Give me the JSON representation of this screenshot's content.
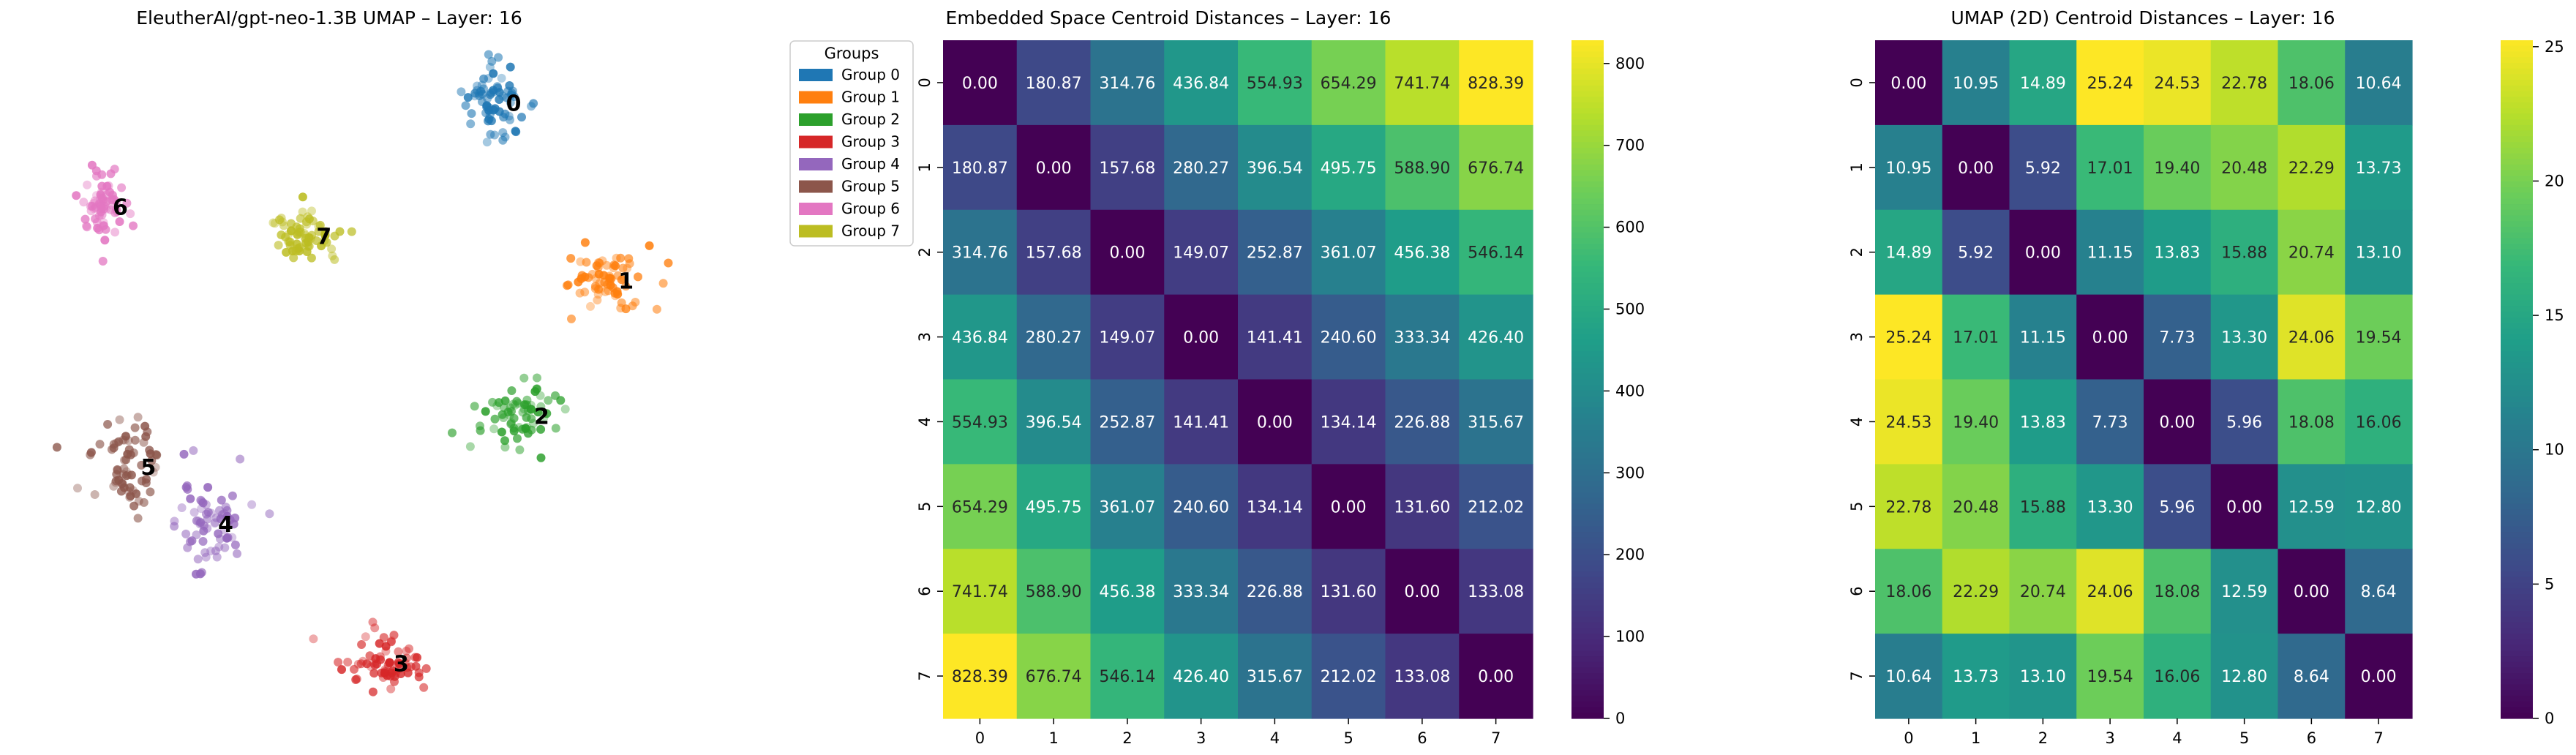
{
  "chart_data": [
    {
      "type": "scatter",
      "title": "EleutherAI/gpt-neo-1.3B UMAP – Layer: 16",
      "legend": {
        "title": "Groups",
        "placement": "right-outside-top",
        "entries": [
          "Group 0",
          "Group 1",
          "Group 2",
          "Group 3",
          "Group 4",
          "Group 5",
          "Group 6",
          "Group 7"
        ]
      },
      "axes_visible": false,
      "clusters": [
        {
          "label": "0",
          "color": "#1f77b4",
          "center": [
            13.2,
            8.9
          ]
        },
        {
          "label": "1",
          "color": "#ff7f0e",
          "center": [
            16.4,
            0.5
          ]
        },
        {
          "label": "2",
          "color": "#2ca02c",
          "center": [
            14.0,
            -5.9
          ]
        },
        {
          "label": "3",
          "color": "#d62728",
          "center": [
            10.0,
            -17.6
          ]
        },
        {
          "label": "4",
          "color": "#9467bd",
          "center": [
            5.0,
            -11.0
          ]
        },
        {
          "label": "5",
          "color": "#8c564b",
          "center": [
            2.8,
            -8.3
          ]
        },
        {
          "label": "6",
          "color": "#e377c2",
          "center": [
            2.0,
            4.0
          ]
        },
        {
          "label": "7",
          "color": "#bcbd22",
          "center": [
            7.8,
            2.6
          ]
        }
      ]
    },
    {
      "type": "heatmap",
      "title": "Embedded Space Centroid Distances – Layer: 16",
      "x_labels": [
        "0",
        "1",
        "2",
        "3",
        "4",
        "5",
        "6",
        "7"
      ],
      "y_labels": [
        "0",
        "1",
        "2",
        "3",
        "4",
        "5",
        "6",
        "7"
      ],
      "colormap": "viridis",
      "vmin": 0,
      "vmax": 828.39,
      "colorbar_ticks": [
        0,
        100,
        200,
        300,
        400,
        500,
        600,
        700,
        800
      ],
      "values": [
        [
          0.0,
          180.87,
          314.76,
          436.84,
          554.93,
          654.29,
          741.74,
          828.39
        ],
        [
          180.87,
          0.0,
          157.68,
          280.27,
          396.54,
          495.75,
          588.9,
          676.74
        ],
        [
          314.76,
          157.68,
          0.0,
          149.07,
          252.87,
          361.07,
          456.38,
          546.14
        ],
        [
          436.84,
          280.27,
          149.07,
          0.0,
          141.41,
          240.6,
          333.34,
          426.4
        ],
        [
          554.93,
          396.54,
          252.87,
          141.41,
          0.0,
          134.14,
          226.88,
          315.67
        ],
        [
          654.29,
          495.75,
          361.07,
          240.6,
          134.14,
          0.0,
          131.6,
          212.02
        ],
        [
          741.74,
          588.9,
          456.38,
          333.34,
          226.88,
          131.6,
          0.0,
          133.08
        ],
        [
          828.39,
          676.74,
          546.14,
          426.4,
          315.67,
          212.02,
          133.08,
          0.0
        ]
      ]
    },
    {
      "type": "heatmap",
      "title": "UMAP (2D) Centroid Distances – Layer: 16",
      "x_labels": [
        "0",
        "1",
        "2",
        "3",
        "4",
        "5",
        "6",
        "7"
      ],
      "y_labels": [
        "0",
        "1",
        "2",
        "3",
        "4",
        "5",
        "6",
        "7"
      ],
      "colormap": "viridis",
      "vmin": 0,
      "vmax": 25.24,
      "colorbar_ticks": [
        0,
        5,
        10,
        15,
        20,
        25
      ],
      "values": [
        [
          0.0,
          10.95,
          14.89,
          25.24,
          24.53,
          22.78,
          18.06,
          10.64
        ],
        [
          10.95,
          0.0,
          5.92,
          17.01,
          19.4,
          20.48,
          22.29,
          13.73
        ],
        [
          14.89,
          5.92,
          0.0,
          11.15,
          13.83,
          15.88,
          20.74,
          13.1
        ],
        [
          25.24,
          17.01,
          11.15,
          0.0,
          7.73,
          13.3,
          24.06,
          19.54
        ],
        [
          24.53,
          19.4,
          13.83,
          7.73,
          0.0,
          5.96,
          18.08,
          16.06
        ],
        [
          22.78,
          20.48,
          15.88,
          13.3,
          5.96,
          0.0,
          12.59,
          12.8
        ],
        [
          18.06,
          22.29,
          20.74,
          24.06,
          18.08,
          12.59,
          0.0,
          8.64
        ],
        [
          10.64,
          13.73,
          13.1,
          19.54,
          16.06,
          12.8,
          8.64,
          0.0
        ]
      ]
    }
  ]
}
